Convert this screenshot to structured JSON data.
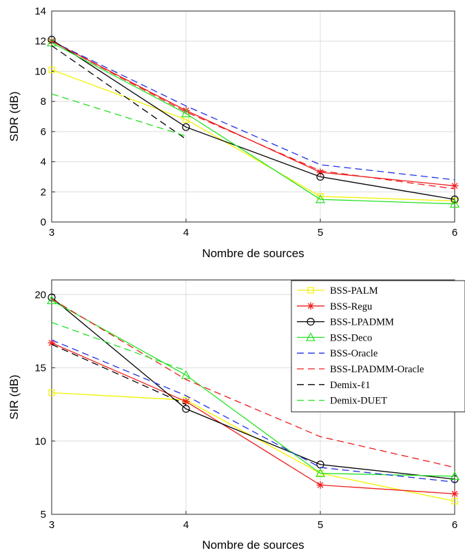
{
  "chart_data": [
    {
      "type": "line",
      "title": "",
      "xlabel": "Nombre de sources",
      "ylabel": "SDR (dB)",
      "x": [
        3,
        4,
        5,
        6
      ],
      "xticks": [
        "3",
        "4",
        "5",
        "6"
      ],
      "yticks": [
        "0",
        "2",
        "4",
        "6",
        "8",
        "10",
        "12",
        "14"
      ],
      "xlim": [
        3,
        6
      ],
      "ylim": [
        0,
        14
      ],
      "grid": true,
      "legend": "none",
      "series": [
        {
          "name": "BSS-PALM",
          "values": [
            10.1,
            6.8,
            1.7,
            1.4
          ],
          "color": "#f2f200",
          "dash": "solid",
          "marker": "square"
        },
        {
          "name": "BSS-Regu",
          "values": [
            12.0,
            7.4,
            3.3,
            2.4
          ],
          "color": "#ee1c1c",
          "dash": "solid",
          "marker": "asterisk"
        },
        {
          "name": "BSS-LPADMM",
          "values": [
            12.1,
            6.3,
            3.0,
            1.5
          ],
          "color": "#000000",
          "dash": "solid",
          "marker": "circle"
        },
        {
          "name": "BSS-Deco",
          "values": [
            11.9,
            7.2,
            1.5,
            1.2
          ],
          "color": "#22e222",
          "dash": "solid",
          "marker": "triangle"
        },
        {
          "name": "BSS-Oracle",
          "values": [
            12.0,
            7.7,
            3.8,
            2.8
          ],
          "color": "#1f2fe8",
          "dash": "dashed",
          "marker": "none"
        },
        {
          "name": "BSS-LPADMM-Oracle",
          "values": [
            12.0,
            7.3,
            3.4,
            2.2
          ],
          "color": "#ee1c1c",
          "dash": "dashed",
          "marker": "none"
        },
        {
          "name": "Demix-ℓ1",
          "values": [
            11.7,
            5.5,
            null,
            null
          ],
          "color": "#000000",
          "dash": "dashed",
          "marker": "none"
        },
        {
          "name": "Demix-DUET",
          "values": [
            8.5,
            5.7,
            null,
            null
          ],
          "color": "#22e222",
          "dash": "dashed",
          "marker": "none"
        }
      ]
    },
    {
      "type": "line",
      "title": "",
      "xlabel": "Nombre de sources",
      "ylabel": "SIR (dB)",
      "x": [
        3,
        4,
        5,
        6
      ],
      "xticks": [
        "3",
        "4",
        "5",
        "6"
      ],
      "yticks": [
        "5",
        "10",
        "15",
        "20"
      ],
      "xlim": [
        3,
        6
      ],
      "ylim": [
        5,
        21
      ],
      "grid": true,
      "legend": "top-right",
      "series": [
        {
          "name": "BSS-PALM",
          "values": [
            13.3,
            12.8,
            7.8,
            5.9
          ],
          "color": "#f2f200",
          "dash": "solid",
          "marker": "square"
        },
        {
          "name": "BSS-Regu",
          "values": [
            16.7,
            12.7,
            7.0,
            6.4
          ],
          "color": "#ee1c1c",
          "dash": "solid",
          "marker": "asterisk"
        },
        {
          "name": "BSS-LPADMM",
          "values": [
            19.8,
            12.2,
            8.4,
            7.4
          ],
          "color": "#000000",
          "dash": "solid",
          "marker": "circle"
        },
        {
          "name": "BSS-Deco",
          "values": [
            19.6,
            14.5,
            7.8,
            7.6
          ],
          "color": "#22e222",
          "dash": "solid",
          "marker": "triangle"
        },
        {
          "name": "BSS-Oracle",
          "values": [
            16.9,
            13.1,
            8.2,
            7.2
          ],
          "color": "#1f2fe8",
          "dash": "dashed",
          "marker": "none"
        },
        {
          "name": "BSS-LPADMM-Oracle",
          "values": [
            19.7,
            14.2,
            10.3,
            8.2
          ],
          "color": "#ee1c1c",
          "dash": "dashed",
          "marker": "none"
        },
        {
          "name": "Demix-ℓ1",
          "values": [
            16.6,
            12.5,
            null,
            null
          ],
          "color": "#000000",
          "dash": "dashed",
          "marker": "none"
        },
        {
          "name": "Demix-DUET",
          "values": [
            18.1,
            14.8,
            null,
            null
          ],
          "color": "#22e222",
          "dash": "dashed",
          "marker": "none"
        }
      ]
    }
  ]
}
